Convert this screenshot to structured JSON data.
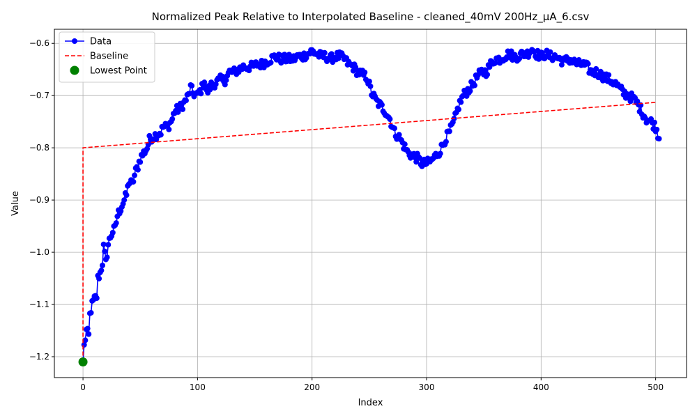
{
  "chart_data": {
    "type": "line",
    "title": "Normalized Peak Relative to Interpolated Baseline - cleaned_40mV 200Hz_µA_6.csv",
    "xlabel": "Index",
    "ylabel": "Value",
    "xlim": [
      -25,
      527
    ],
    "ylim": [
      -1.24,
      -0.573
    ],
    "xticks": [
      0,
      100,
      200,
      300,
      400,
      500
    ],
    "xtick_labels": [
      "0",
      "100",
      "200",
      "300",
      "400",
      "500"
    ],
    "yticks": [
      -1.2,
      -1.1,
      -1.0,
      -0.9,
      -0.8,
      -0.7,
      -0.6
    ],
    "ytick_labels": [
      "−1.2",
      "−1.1",
      "−1.0",
      "−0.9",
      "−0.8",
      "−0.7",
      "−0.6"
    ],
    "grid": true,
    "legend_position": "top-left",
    "series": [
      {
        "name": "Data",
        "style": "line-with-markers",
        "color": "#0000ff",
        "curve_points": [
          [
            0,
            -1.21
          ],
          [
            1,
            -1.18
          ],
          [
            3,
            -1.15
          ],
          [
            5,
            -1.16
          ],
          [
            6,
            -1.12
          ],
          [
            8,
            -1.1
          ],
          [
            10,
            -1.09
          ],
          [
            12,
            -1.085
          ],
          [
            13,
            -1.05
          ],
          [
            15,
            -1.04
          ],
          [
            17,
            -1.02
          ],
          [
            18,
            -0.99
          ],
          [
            20,
            -1.02
          ],
          [
            22,
            -0.985
          ],
          [
            24,
            -0.97
          ],
          [
            26,
            -0.96
          ],
          [
            28,
            -0.955
          ],
          [
            30,
            -0.93
          ],
          [
            33,
            -0.915
          ],
          [
            36,
            -0.9
          ],
          [
            38,
            -0.89
          ],
          [
            40,
            -0.865
          ],
          [
            43,
            -0.87
          ],
          [
            46,
            -0.845
          ],
          [
            48,
            -0.835
          ],
          [
            50,
            -0.82
          ],
          [
            53,
            -0.81
          ],
          [
            56,
            -0.8
          ],
          [
            58,
            -0.785
          ],
          [
            60,
            -0.78
          ],
          [
            64,
            -0.775
          ],
          [
            68,
            -0.77
          ],
          [
            70,
            -0.76
          ],
          [
            74,
            -0.76
          ],
          [
            78,
            -0.745
          ],
          [
            80,
            -0.73
          ],
          [
            84,
            -0.725
          ],
          [
            88,
            -0.715
          ],
          [
            92,
            -0.7
          ],
          [
            94,
            -0.685
          ],
          [
            96,
            -0.695
          ],
          [
            100,
            -0.7
          ],
          [
            104,
            -0.685
          ],
          [
            106,
            -0.67
          ],
          [
            108,
            -0.695
          ],
          [
            112,
            -0.68
          ],
          [
            116,
            -0.675
          ],
          [
            120,
            -0.67
          ],
          [
            124,
            -0.67
          ],
          [
            128,
            -0.655
          ],
          [
            132,
            -0.655
          ],
          [
            136,
            -0.65
          ],
          [
            140,
            -0.645
          ],
          [
            144,
            -0.645
          ],
          [
            148,
            -0.645
          ],
          [
            152,
            -0.64
          ],
          [
            156,
            -0.64
          ],
          [
            160,
            -0.635
          ],
          [
            164,
            -0.63
          ],
          [
            168,
            -0.625
          ],
          [
            172,
            -0.63
          ],
          [
            176,
            -0.63
          ],
          [
            180,
            -0.63
          ],
          [
            184,
            -0.63
          ],
          [
            188,
            -0.625
          ],
          [
            192,
            -0.625
          ],
          [
            196,
            -0.62
          ],
          [
            200,
            -0.615
          ],
          [
            204,
            -0.62
          ],
          [
            208,
            -0.625
          ],
          [
            212,
            -0.625
          ],
          [
            216,
            -0.63
          ],
          [
            220,
            -0.625
          ],
          [
            224,
            -0.625
          ],
          [
            228,
            -0.63
          ],
          [
            232,
            -0.64
          ],
          [
            236,
            -0.645
          ],
          [
            240,
            -0.655
          ],
          [
            244,
            -0.66
          ],
          [
            248,
            -0.665
          ],
          [
            252,
            -0.695
          ],
          [
            256,
            -0.71
          ],
          [
            260,
            -0.72
          ],
          [
            264,
            -0.73
          ],
          [
            268,
            -0.745
          ],
          [
            272,
            -0.77
          ],
          [
            276,
            -0.78
          ],
          [
            280,
            -0.795
          ],
          [
            284,
            -0.81
          ],
          [
            288,
            -0.815
          ],
          [
            292,
            -0.82
          ],
          [
            296,
            -0.83
          ],
          [
            300,
            -0.83
          ],
          [
            304,
            -0.825
          ],
          [
            308,
            -0.815
          ],
          [
            312,
            -0.805
          ],
          [
            316,
            -0.785
          ],
          [
            320,
            -0.77
          ],
          [
            324,
            -0.75
          ],
          [
            328,
            -0.72
          ],
          [
            332,
            -0.7
          ],
          [
            336,
            -0.69
          ],
          [
            340,
            -0.68
          ],
          [
            344,
            -0.665
          ],
          [
            348,
            -0.655
          ],
          [
            352,
            -0.655
          ],
          [
            356,
            -0.64
          ],
          [
            360,
            -0.63
          ],
          [
            364,
            -0.63
          ],
          [
            368,
            -0.625
          ],
          [
            372,
            -0.62
          ],
          [
            376,
            -0.625
          ],
          [
            380,
            -0.625
          ],
          [
            384,
            -0.62
          ],
          [
            388,
            -0.62
          ],
          [
            392,
            -0.61
          ],
          [
            396,
            -0.62
          ],
          [
            400,
            -0.625
          ],
          [
            404,
            -0.62
          ],
          [
            408,
            -0.625
          ],
          [
            412,
            -0.625
          ],
          [
            416,
            -0.63
          ],
          [
            420,
            -0.635
          ],
          [
            424,
            -0.63
          ],
          [
            428,
            -0.635
          ],
          [
            432,
            -0.64
          ],
          [
            436,
            -0.64
          ],
          [
            440,
            -0.645
          ],
          [
            444,
            -0.655
          ],
          [
            448,
            -0.655
          ],
          [
            452,
            -0.66
          ],
          [
            456,
            -0.665
          ],
          [
            460,
            -0.67
          ],
          [
            464,
            -0.675
          ],
          [
            468,
            -0.685
          ],
          [
            472,
            -0.695
          ],
          [
            476,
            -0.7
          ],
          [
            480,
            -0.705
          ],
          [
            484,
            -0.715
          ],
          [
            488,
            -0.73
          ],
          [
            492,
            -0.745
          ],
          [
            496,
            -0.75
          ],
          [
            500,
            -0.76
          ],
          [
            503,
            -0.78
          ]
        ],
        "noise_amplitude": 0.009,
        "n_points": 504
      },
      {
        "name": "Baseline",
        "style": "dashed-line",
        "color": "#ff0000",
        "x": [
          0,
          0,
          500
        ],
        "y": [
          -1.21,
          -0.8,
          -0.713
        ]
      },
      {
        "name": "Lowest Point",
        "style": "marker",
        "color": "#008000",
        "x": [
          0
        ],
        "y": [
          -1.21
        ]
      }
    ]
  }
}
